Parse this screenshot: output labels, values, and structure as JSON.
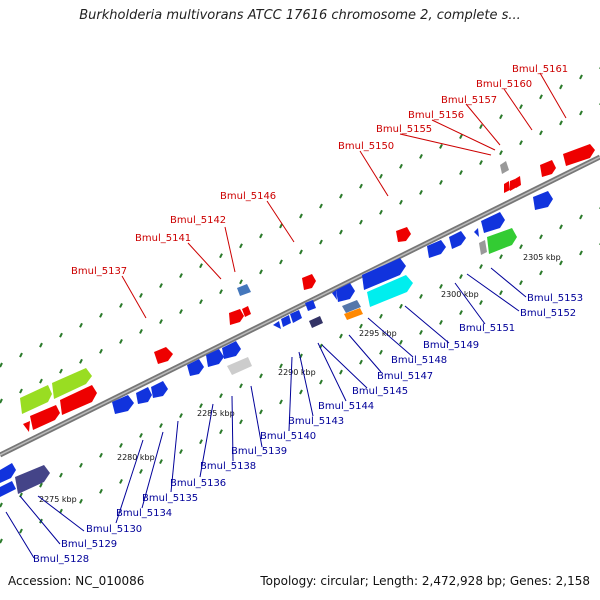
{
  "title": "Burkholderia multivorans ATCC 17616 chromosome 2, complete s...",
  "accession": "Accession: NC_010086",
  "topology": "Topology: circular; Length: 2,472,928 bp; Genes: 2,158",
  "ticks": [
    "2275 kbp",
    "2280 kbp",
    "2285 kbp",
    "2290 kbp",
    "2295 kbp",
    "2300 kbp",
    "2305 kbp"
  ],
  "colors": {
    "top_label": "#cc0000",
    "bottom_label": "#000099",
    "backbone": "#888888",
    "tick": "#2a7a2a"
  },
  "top_labels": [
    "Bmul_5161",
    "Bmul_5160",
    "Bmul_5157",
    "Bmul_5156",
    "Bmul_5155",
    "Bmul_5150",
    "Bmul_5146",
    "Bmul_5142",
    "Bmul_5141",
    "Bmul_5137"
  ],
  "bottom_labels": [
    "Bmul_5153",
    "Bmul_5152",
    "Bmul_5151",
    "Bmul_5149",
    "Bmul_5148",
    "Bmul_5147",
    "Bmul_5145",
    "Bmul_5144",
    "Bmul_5143",
    "Bmul_5140",
    "Bmul_5139",
    "Bmul_5138",
    "Bmul_5136",
    "Bmul_5135",
    "Bmul_5134",
    "Bmul_5130",
    "Bmul_5129",
    "Bmul_5128"
  ]
}
